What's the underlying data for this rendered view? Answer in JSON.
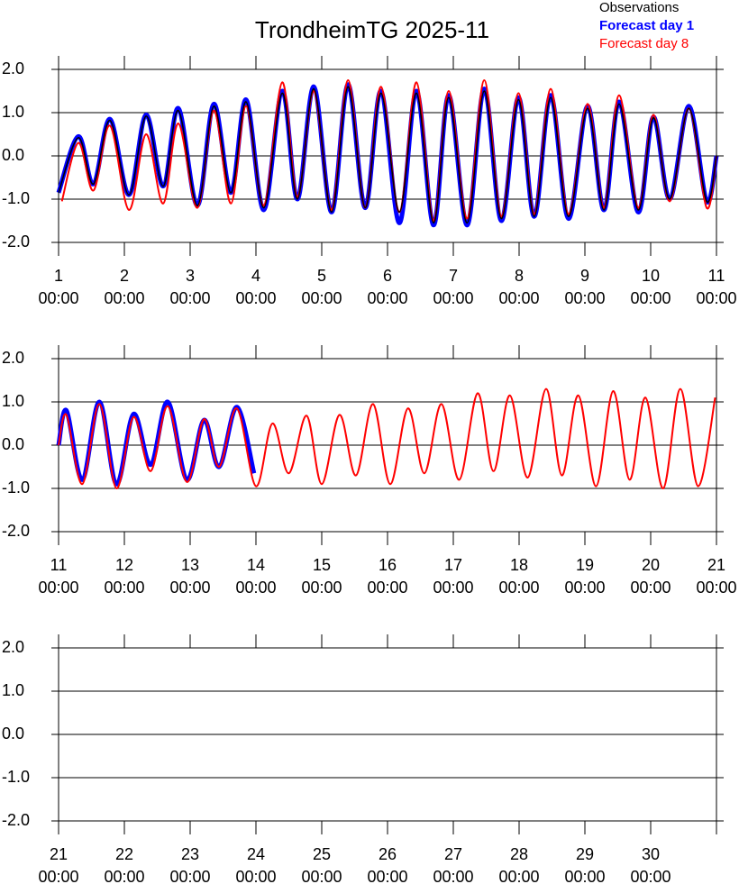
{
  "chart_data": [
    {
      "type": "line",
      "title": "TrondheimTG 2025-11",
      "legend": "top-right",
      "xlim": [
        1,
        11
      ],
      "ylim": [
        -2,
        2
      ],
      "zero_line": true,
      "xticks": [
        {
          "value": 1,
          "label": "1\n00:00"
        },
        {
          "value": 2,
          "label": "2\n00:00"
        },
        {
          "value": 3,
          "label": "3\n00:00"
        },
        {
          "value": 4,
          "label": "4\n00:00"
        },
        {
          "value": 5,
          "label": "5\n00:00"
        },
        {
          "value": 6,
          "label": "6\n00:00"
        },
        {
          "value": 7,
          "label": "7\n00:00"
        },
        {
          "value": 8,
          "label": "8\n00:00"
        },
        {
          "value": 9,
          "label": "9\n00:00"
        },
        {
          "value": 10,
          "label": "10\n00:00"
        },
        {
          "value": 11,
          "label": "11\n00:00"
        }
      ],
      "yticks": [
        {
          "value": 2,
          "label": "2.0"
        },
        {
          "value": 1,
          "label": "1.0"
        },
        {
          "value": 0,
          "label": "0.0"
        },
        {
          "value": -1,
          "label": "-1.0"
        },
        {
          "value": -2,
          "label": "-2.0"
        }
      ],
      "series": [
        {
          "name": "Observations",
          "color": "#000000",
          "x": [
            1.0,
            1.3,
            1.53,
            1.78,
            2.07,
            2.33,
            2.59,
            2.82,
            3.11,
            3.36,
            3.62,
            3.85,
            4.12,
            4.4,
            4.63,
            4.88,
            5.15,
            5.4,
            5.66,
            5.9,
            6.18,
            6.44,
            6.7,
            6.93,
            7.21,
            7.47,
            7.73,
            7.99,
            8.23,
            8.48,
            8.75,
            9.04,
            9.29,
            9.52,
            9.81,
            10.04,
            10.29,
            10.58,
            10.85,
            11.0
          ],
          "values": [
            -0.85,
            0.42,
            -0.65,
            0.82,
            -0.9,
            0.92,
            -0.7,
            1.05,
            -1.15,
            1.15,
            -0.85,
            1.25,
            -1.2,
            1.45,
            -1.0,
            1.55,
            -1.3,
            1.6,
            -1.2,
            1.45,
            -1.3,
            1.45,
            -1.55,
            1.35,
            -1.55,
            1.5,
            -1.45,
            1.3,
            -1.4,
            1.35,
            -1.4,
            1.1,
            -1.25,
            1.2,
            -1.25,
            0.88,
            -1.0,
            1.1,
            -1.05,
            0.0
          ]
        },
        {
          "name": "Forecast day 1",
          "color": "#0000ff",
          "x": [
            1.0,
            1.3,
            1.53,
            1.78,
            2.07,
            2.33,
            2.59,
            2.82,
            3.11,
            3.36,
            3.62,
            3.85,
            4.12,
            4.4,
            4.63,
            4.88,
            5.15,
            5.4,
            5.66,
            5.9,
            6.18,
            6.44,
            6.7,
            6.93,
            7.21,
            7.47,
            7.73,
            7.99,
            8.23,
            8.48,
            8.75,
            9.04,
            9.29,
            9.52,
            9.81,
            10.04,
            10.29,
            10.58,
            10.85,
            11.0
          ],
          "values": [
            -0.85,
            0.45,
            -0.65,
            0.85,
            -0.9,
            0.95,
            -0.7,
            1.1,
            -1.15,
            1.2,
            -0.85,
            1.3,
            -1.25,
            1.5,
            -1.0,
            1.6,
            -1.3,
            1.65,
            -1.2,
            1.5,
            -1.55,
            1.5,
            -1.6,
            1.4,
            -1.6,
            1.55,
            -1.5,
            1.35,
            -1.4,
            1.4,
            -1.45,
            1.15,
            -1.25,
            1.25,
            -1.3,
            0.9,
            -1.0,
            1.15,
            -1.05,
            0.0
          ]
        },
        {
          "name": "Forecast day 8",
          "color": "#ff0000",
          "x": [
            1.05,
            1.3,
            1.53,
            1.78,
            2.07,
            2.33,
            2.59,
            2.82,
            3.11,
            3.36,
            3.62,
            3.85,
            4.12,
            4.4,
            4.63,
            4.88,
            5.15,
            5.4,
            5.66,
            5.9,
            6.18,
            6.44,
            6.7,
            6.93,
            7.21,
            7.47,
            7.73,
            7.99,
            8.23,
            8.48,
            8.75,
            9.04,
            9.29,
            9.52,
            9.81,
            10.04,
            10.29,
            10.58,
            10.85,
            11.0
          ],
          "values": [
            -1.05,
            0.3,
            -0.8,
            0.7,
            -1.25,
            0.5,
            -1.1,
            0.75,
            -1.2,
            1.05,
            -1.1,
            1.15,
            -1.15,
            1.7,
            -0.95,
            1.5,
            -1.25,
            1.75,
            -1.2,
            1.6,
            -1.3,
            1.7,
            -1.5,
            1.5,
            -1.45,
            1.75,
            -1.4,
            1.45,
            -1.35,
            1.55,
            -1.35,
            1.2,
            -1.2,
            1.4,
            -1.2,
            0.95,
            -1.05,
            1.1,
            -1.2,
            0.0
          ]
        }
      ]
    },
    {
      "type": "line",
      "xlim": [
        11,
        21
      ],
      "ylim": [
        -2,
        2
      ],
      "zero_line": true,
      "xticks": [
        {
          "value": 11,
          "label": "11\n00:00"
        },
        {
          "value": 12,
          "label": "12\n00:00"
        },
        {
          "value": 13,
          "label": "13\n00:00"
        },
        {
          "value": 14,
          "label": "14\n00:00"
        },
        {
          "value": 15,
          "label": "15\n00:00"
        },
        {
          "value": 16,
          "label": "16\n00:00"
        },
        {
          "value": 17,
          "label": "17\n00:00"
        },
        {
          "value": 18,
          "label": "18\n00:00"
        },
        {
          "value": 19,
          "label": "19\n00:00"
        },
        {
          "value": 20,
          "label": "20\n00:00"
        },
        {
          "value": 21,
          "label": "21\n00:00"
        }
      ],
      "yticks": [
        {
          "value": 2,
          "label": "2.0"
        },
        {
          "value": 1,
          "label": "1.0"
        },
        {
          "value": 0,
          "label": "0.0"
        },
        {
          "value": -1,
          "label": "-1.0"
        },
        {
          "value": -2,
          "label": "-2.0"
        }
      ],
      "series": [
        {
          "name": "Forecast day 1",
          "color": "#0000ff",
          "x": [
            11.0,
            11.12,
            11.36,
            11.62,
            11.88,
            12.14,
            12.4,
            12.66,
            12.95,
            13.21,
            13.44,
            13.71,
            13.97
          ],
          "values": [
            0.0,
            0.8,
            -0.8,
            1.0,
            -0.9,
            0.72,
            -0.45,
            1.0,
            -0.8,
            0.58,
            -0.5,
            0.88,
            -0.65
          ]
        },
        {
          "name": "Forecast day 8",
          "color": "#ff0000",
          "x": [
            11.0,
            11.12,
            11.36,
            11.62,
            11.88,
            12.14,
            12.4,
            12.66,
            12.95,
            13.21,
            13.44,
            13.71,
            14.0,
            14.25,
            14.5,
            14.77,
            15.0,
            15.27,
            15.52,
            15.78,
            16.04,
            16.31,
            16.56,
            16.82,
            17.09,
            17.37,
            17.61,
            17.86,
            18.13,
            18.41,
            18.65,
            18.9,
            19.17,
            19.43,
            19.68,
            19.92,
            20.19,
            20.45,
            20.72,
            20.98
          ],
          "values": [
            0.0,
            0.7,
            -0.9,
            0.95,
            -1.0,
            0.65,
            -0.6,
            0.9,
            -0.85,
            0.6,
            -0.5,
            0.85,
            -0.95,
            0.5,
            -0.65,
            0.68,
            -0.9,
            0.7,
            -0.7,
            0.95,
            -0.9,
            0.85,
            -0.65,
            0.95,
            -0.8,
            1.2,
            -0.6,
            1.15,
            -0.75,
            1.3,
            -0.7,
            1.15,
            -0.95,
            1.25,
            -0.8,
            1.1,
            -1.0,
            1.3,
            -0.95,
            1.1
          ]
        }
      ]
    },
    {
      "type": "line",
      "xlim": [
        21,
        31
      ],
      "ylim": [
        -2,
        2
      ],
      "zero_line": true,
      "xticks": [
        {
          "value": 21,
          "label": "21\n00:00"
        },
        {
          "value": 22,
          "label": "22\n00:00"
        },
        {
          "value": 23,
          "label": "23\n00:00"
        },
        {
          "value": 24,
          "label": "24\n00:00"
        },
        {
          "value": 25,
          "label": "25\n00:00"
        },
        {
          "value": 26,
          "label": "26\n00:00"
        },
        {
          "value": 27,
          "label": "27\n00:00"
        },
        {
          "value": 28,
          "label": "28\n00:00"
        },
        {
          "value": 29,
          "label": "29\n00:00"
        },
        {
          "value": 30,
          "label": "30\n00:00"
        }
      ],
      "yticks": [
        {
          "value": 2,
          "label": "2.0"
        },
        {
          "value": 1,
          "label": "1.0"
        },
        {
          "value": 0,
          "label": "0.0"
        },
        {
          "value": -1,
          "label": "-1.0"
        },
        {
          "value": -2,
          "label": "-2.0"
        }
      ],
      "series": []
    }
  ]
}
